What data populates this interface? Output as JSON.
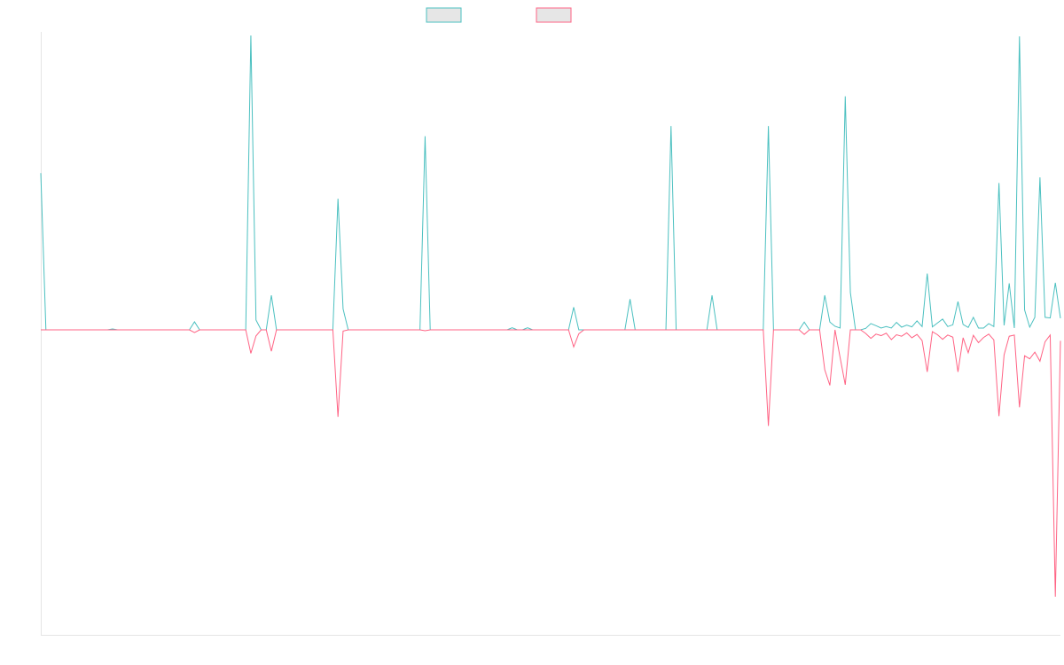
{
  "colors": {
    "series_a": "#4bc0c0",
    "series_b": "#ff6384",
    "legend_fill": "#e6e6e6",
    "axis": "#e5e5e5"
  },
  "chart_data": {
    "type": "line",
    "title": "",
    "xlabel": "",
    "ylabel": "",
    "ylim": [
      -100,
      100
    ],
    "grid": false,
    "legend_position": "top",
    "x_count": 200,
    "series": [
      {
        "name": "",
        "color": "#4bc0c0",
        "values": [
          52.6,
          0.0,
          0.0,
          0.0,
          0.0,
          0.0,
          0.0,
          0.0,
          0.0,
          0.0,
          0.0,
          0.0,
          0.0,
          0.0,
          0.3,
          0.0,
          0.0,
          0.0,
          0.0,
          0.0,
          0.0,
          0.0,
          0.0,
          0.0,
          0.0,
          0.0,
          0.0,
          0.0,
          0.0,
          0.0,
          2.7,
          0.0,
          0.0,
          0.0,
          0.0,
          0.0,
          0.0,
          0.0,
          0.0,
          0.0,
          0.0,
          98.8,
          3.3,
          0.0,
          0.0,
          11.6,
          0.0,
          0.0,
          0.0,
          0.0,
          0.0,
          0.0,
          0.0,
          0.0,
          0.0,
          0.0,
          0.0,
          0.0,
          0.0,
          0.0,
          0.0,
          0.0,
          0.0,
          0.0,
          0.0,
          0.0,
          0.0,
          0.0,
          0.0,
          0.0,
          0.0,
          0.0,
          0.0,
          0.0,
          0.0,
          0.0,
          0.0,
          0.0,
          0.0,
          0.0,
          0.0,
          0.0,
          0.0,
          0.0,
          0.0,
          0.0,
          0.0,
          0.0,
          0.0,
          0.0,
          0.0,
          0.0,
          0.0,
          0.0,
          0.0,
          0.0,
          0.0,
          0.0,
          0.0,
          0.0
        ]
      },
      {
        "name": "",
        "color": "#ff6384",
        "values": [
          0.0,
          0.0,
          0.0,
          0.0,
          0.0,
          0.0,
          0.0,
          0.0,
          0.0,
          0.0,
          0.0,
          0.0,
          0.0,
          0.0,
          0.0,
          0.0,
          0.0,
          0.0,
          0.0,
          0.0,
          0.0,
          0.0,
          0.0,
          0.0,
          0.0,
          0.0,
          0.0,
          0.0,
          0.0,
          0.0,
          -0.9,
          0.0,
          0.0,
          0.0,
          0.0,
          0.0,
          0.0,
          0.0,
          0.0,
          0.0,
          0.0,
          -7.7,
          -2.0,
          0.0,
          0.0,
          -7.0,
          0.0,
          0.0,
          0.0,
          0.0,
          0.0,
          0.0,
          0.0,
          0.0,
          0.0,
          0.0,
          0.0,
          0.0,
          0.0,
          0.0,
          0.0,
          0.0,
          0.0,
          0.0,
          0.0,
          0.0,
          0.0,
          0.0,
          0.0,
          0.0,
          0.0,
          0.0,
          0.0,
          0.0,
          0.0,
          0.0,
          0.0,
          0.0,
          0.0,
          0.0,
          0.0,
          0.0,
          0.0,
          0.0,
          0.0,
          0.0,
          0.0,
          0.0,
          0.0,
          0.0,
          0.0,
          0.0,
          0.0,
          0.0,
          0.0,
          0.0,
          0.0,
          0.0,
          0.0,
          0.0
        ]
      }
    ],
    "spikes": {
      "series_a": [
        [
          58,
          44.0
        ],
        [
          59,
          7.0
        ],
        [
          75,
          65.0
        ],
        [
          92,
          0.7
        ],
        [
          95,
          0.7
        ],
        [
          101,
          0.0
        ],
        [
          104,
          7.6
        ],
        [
          115,
          10.3
        ],
        [
          123,
          68.4
        ],
        [
          131,
          11.6
        ],
        [
          142,
          68.4
        ],
        [
          149,
          2.6
        ],
        [
          153,
          11.6
        ],
        [
          154,
          2.6
        ],
        [
          155,
          1.2
        ],
        [
          156,
          0.6
        ],
        [
          157,
          78.4
        ],
        [
          158,
          12.5
        ],
        [
          159,
          0.0
        ],
        [
          166,
          0.6
        ],
        [
          173,
          18.9
        ],
        [
          174,
          1.0
        ],
        [
          181,
          0.8
        ],
        [
          183,
          0.6
        ],
        [
          184,
          0.6
        ],
        [
          190,
          0.6
        ],
        [
          191,
          98.5
        ],
        [
          192,
          6.7
        ],
        [
          193,
          0.9
        ],
        [
          195,
          51.2
        ],
        [
          196,
          4.2
        ],
        [
          197,
          4.0
        ],
        [
          198,
          15.8
        ],
        [
          199,
          3.9
        ],
        [
          200,
          12.8
        ]
      ],
      "series_b": [
        [
          58,
          -28.5
        ],
        [
          59,
          -0.4
        ],
        [
          75,
          -0.3
        ],
        [
          104,
          -5.6
        ],
        [
          105,
          -1.3
        ],
        [
          142,
          -31.5
        ],
        [
          149,
          -1.5
        ],
        [
          153,
          -13.1
        ],
        [
          154,
          -18.2
        ],
        [
          156,
          -9.1
        ],
        [
          157,
          -18.0
        ],
        [
          173,
          -13.8
        ],
        [
          174,
          -0.6
        ],
        [
          175,
          -1.6
        ],
        [
          191,
          -25.4
        ],
        [
          193,
          -9.5
        ],
        [
          195,
          -10.3
        ],
        [
          198,
          -87.5
        ],
        [
          199,
          -3.6
        ],
        [
          200,
          -1.1
        ]
      ],
      "series_a_tail": [
        0.5,
        2.1,
        1.4,
        0.6,
        1.1,
        1.8,
        2.5,
        0.9,
        1.6,
        1.0,
        3.0,
        1.1,
        0.5,
        1.3,
        2.3,
        3.6,
        1.1,
        1.7,
        9.5,
        1.8,
        2.8,
        4.2,
        1.5,
        3.6,
        2.1,
        1.1,
        49.3,
        1.5,
        15.6,
        2.6,
        1.8,
        7.8,
        8.3,
        4.2,
        1.3,
        2.1,
        3.2,
        19.4,
        3.8
      ],
      "series_b_tail": [
        -1.2,
        -2.8,
        -1.4,
        -1.9,
        -1.1,
        -3.2,
        -1.6,
        -2.1,
        -1.0,
        -2.6,
        -1.5,
        -3.5,
        -1.8,
        -2.3,
        -1.3,
        -3.1,
        -1.7,
        -2.4,
        -13.8,
        -2.6,
        -7.5,
        -1.8,
        -4.2,
        -2.5,
        -1.4,
        -3.3,
        -28.3,
        -8.2,
        -2.1,
        -1.7,
        -4.6,
        -8.5,
        -2.2,
        -7.3,
        -2.6,
        -3.9,
        -1.7,
        -8.3,
        -4.9
      ]
    }
  }
}
